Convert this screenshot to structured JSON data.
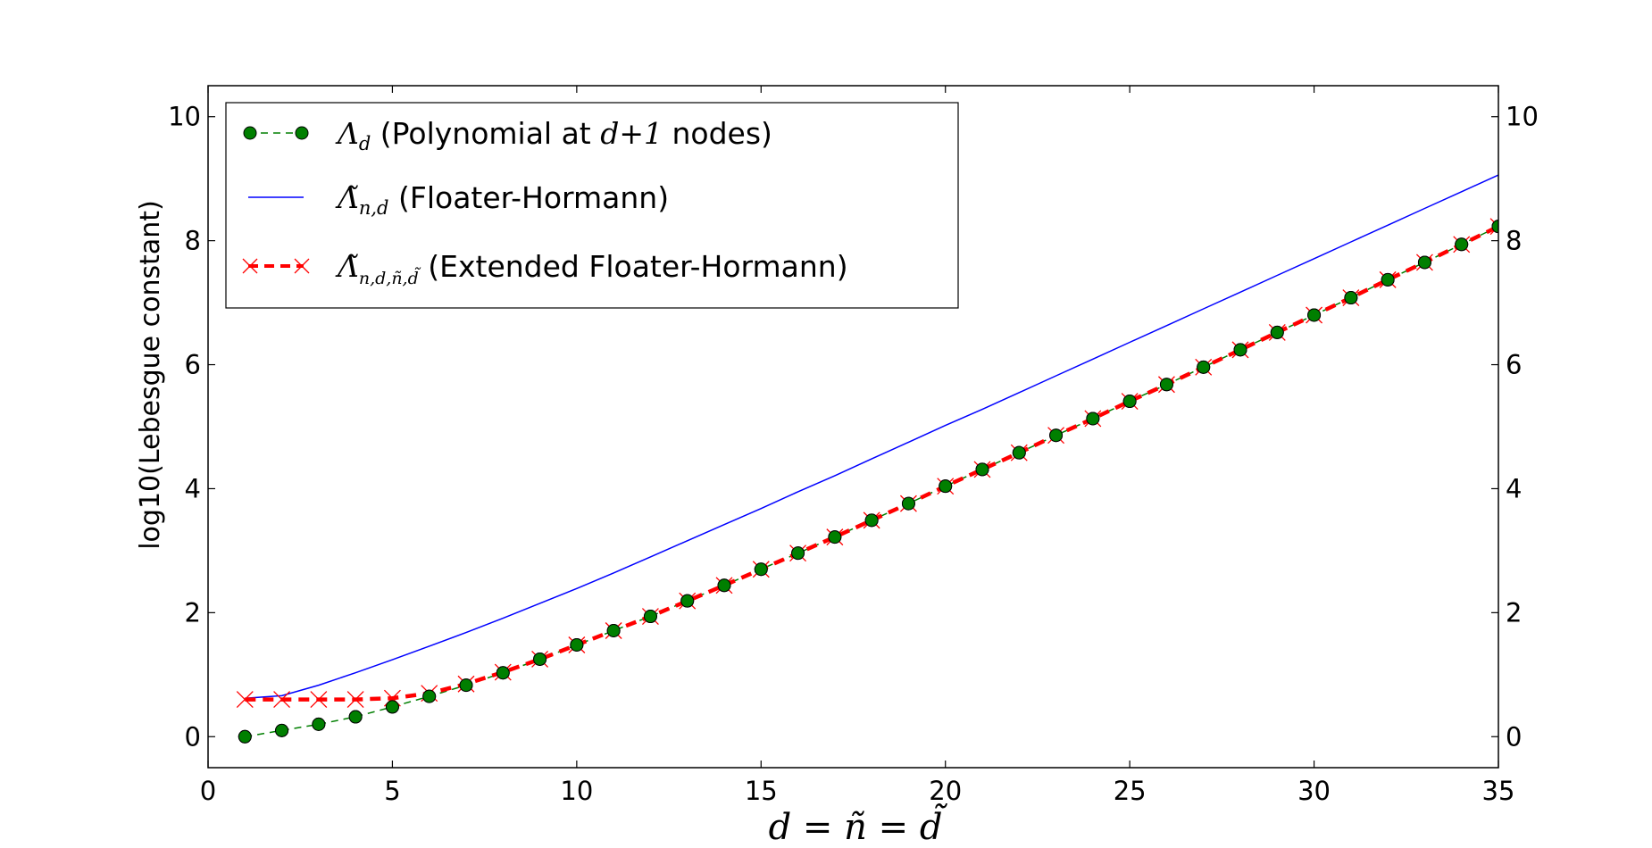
{
  "chart_data": {
    "type": "line",
    "xlabel": "d = ñ = d̃",
    "ylabel": "log10(Lebesgue constant)",
    "xlim": [
      0,
      35
    ],
    "ylim": [
      -0.5,
      10.5
    ],
    "x_ticks": [
      "0",
      "5",
      "10",
      "15",
      "20",
      "25",
      "30",
      "35"
    ],
    "y_ticks": [
      "0",
      "2",
      "4",
      "6",
      "8",
      "10"
    ],
    "y_ticks_right": [
      "0",
      "2",
      "4",
      "6",
      "8",
      "10"
    ],
    "grid": false,
    "legend_position": "top-left",
    "x": [
      1,
      2,
      3,
      4,
      5,
      6,
      7,
      8,
      9,
      10,
      11,
      12,
      13,
      14,
      15,
      16,
      17,
      18,
      19,
      20,
      21,
      22,
      23,
      24,
      25,
      26,
      27,
      28,
      29,
      30,
      31,
      32,
      33,
      34,
      35
    ],
    "series": [
      {
        "key": "poly",
        "name_main": "Λ",
        "name_sub": "d",
        "name_rest_1": " (Polynomial at ",
        "name_math": "d+1",
        "name_rest_2": " nodes)",
        "color": "#007f00",
        "style": "dashed-dots",
        "values": [
          0.0,
          0.1,
          0.2,
          0.32,
          0.48,
          0.65,
          0.83,
          1.03,
          1.25,
          1.48,
          1.71,
          1.94,
          2.19,
          2.44,
          2.7,
          2.96,
          3.22,
          3.49,
          3.76,
          4.04,
          4.31,
          4.58,
          4.86,
          5.13,
          5.41,
          5.68,
          5.96,
          6.24,
          6.52,
          6.8,
          7.08,
          7.37,
          7.65,
          7.94,
          8.23
        ]
      },
      {
        "key": "fh",
        "name_main": "Λ̃",
        "name_sub": "n,d",
        "name_rest_1": " (Floater-Hormann)",
        "color": "#0000ff",
        "style": "solid",
        "values": [
          0.62,
          0.66,
          0.83,
          1.03,
          1.24,
          1.46,
          1.68,
          1.91,
          2.15,
          2.39,
          2.64,
          2.9,
          3.16,
          3.42,
          3.68,
          3.95,
          4.21,
          4.48,
          4.75,
          5.02,
          5.28,
          5.55,
          5.82,
          6.09,
          6.36,
          6.63,
          6.9,
          7.17,
          7.44,
          7.71,
          7.98,
          8.25,
          8.52,
          8.79,
          9.06
        ]
      },
      {
        "key": "efh",
        "name_main": "Λ̃",
        "name_sub": "n,d,ñ,d̃",
        "name_rest_1": " (Extended Floater-Hormann)",
        "color": "#ff0000",
        "style": "thick-dashed-x",
        "values": [
          0.6,
          0.6,
          0.6,
          0.6,
          0.62,
          0.7,
          0.85,
          1.04,
          1.25,
          1.48,
          1.71,
          1.94,
          2.19,
          2.44,
          2.7,
          2.96,
          3.22,
          3.49,
          3.76,
          4.04,
          4.31,
          4.58,
          4.86,
          5.13,
          5.41,
          5.68,
          5.96,
          6.24,
          6.52,
          6.8,
          7.08,
          7.37,
          7.65,
          7.94,
          8.23
        ]
      }
    ]
  }
}
